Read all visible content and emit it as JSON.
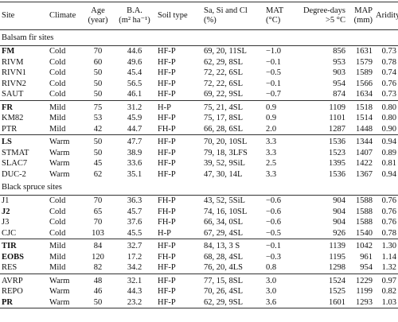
{
  "table": {
    "columns": [
      [
        "Site"
      ],
      [
        "Climate"
      ],
      [
        "Age",
        "(year)"
      ],
      [
        "B.A.",
        "(m² ha⁻¹)"
      ],
      [
        "Soil type"
      ],
      [
        "Sa, Si and Cl",
        "(%)"
      ],
      [
        "MAT",
        "(°C)"
      ],
      [
        "Degree-days",
        ">5 °C"
      ],
      [
        "MAP",
        "(mm)"
      ],
      [
        "Aridity"
      ]
    ],
    "sections": [
      {
        "title": "Balsam fir sites",
        "groups": [
          {
            "rows": [
              {
                "bold": true,
                "cells": [
                  "FM",
                  "Cold",
                  "70",
                  "44.6",
                  "HF-P",
                  "69, 20, 11SL",
                  "−1.0",
                  "856",
                  "1631",
                  "0.73"
                ]
              },
              {
                "cells": [
                  "RIVM",
                  "Cold",
                  "60",
                  "49.6",
                  "HF-P",
                  "62, 29, 8SL",
                  "−0.1",
                  "953",
                  "1579",
                  "0.78"
                ]
              },
              {
                "cells": [
                  "RIVN1",
                  "Cold",
                  "50",
                  "45.4",
                  "HF-P",
                  "72, 22, 6SL",
                  "−0.5",
                  "903",
                  "1589",
                  "0.74"
                ]
              },
              {
                "cells": [
                  "RIVN2",
                  "Cold",
                  "50",
                  "56.5",
                  "HF-P",
                  "72, 22, 6SL",
                  "−0.1",
                  "954",
                  "1566",
                  "0.76"
                ]
              },
              {
                "cells": [
                  "SAUT",
                  "Cold",
                  "50",
                  "46.1",
                  "HF-P",
                  "69, 22, 9SL",
                  "−0.7",
                  "874",
                  "1634",
                  "0.73"
                ]
              }
            ]
          },
          {
            "rows": [
              {
                "bold": true,
                "cells": [
                  "FR",
                  "Mild",
                  "75",
                  "31.2",
                  "H-P",
                  "75, 21, 4SL",
                  "0.9",
                  "1109",
                  "1518",
                  "0.80"
                ]
              },
              {
                "cells": [
                  "KM82",
                  "Mild",
                  "53",
                  "45.9",
                  "HF-P",
                  "75, 17, 8SL",
                  "0.9",
                  "1101",
                  "1514",
                  "0.80"
                ]
              },
              {
                "cells": [
                  "PTR",
                  "Mild",
                  "42",
                  "44.7",
                  "FH-P",
                  "66, 28, 6SL",
                  "2.0",
                  "1287",
                  "1448",
                  "0.90"
                ]
              }
            ]
          },
          {
            "rows": [
              {
                "bold": true,
                "cells": [
                  "LS",
                  "Warm",
                  "50",
                  "47.7",
                  "HF-P",
                  "70, 20, 10SL",
                  "3.3",
                  "1536",
                  "1344",
                  "0.94"
                ]
              },
              {
                "cells": [
                  "STMAT",
                  "Warm",
                  "50",
                  "38.9",
                  "HF-P",
                  "79, 18, 3LFS",
                  "3.3",
                  "1523",
                  "1407",
                  "0.89"
                ]
              },
              {
                "cells": [
                  "SLAC7",
                  "Warm",
                  "45",
                  "33.6",
                  "HF-P",
                  "39, 52, 9SiL",
                  "2.5",
                  "1395",
                  "1422",
                  "0.81"
                ]
              },
              {
                "cells": [
                  "DUC-2",
                  "Warm",
                  "62",
                  "35.1",
                  "HF-P",
                  "47, 30, 14L",
                  "3.3",
                  "1536",
                  "1367",
                  "0.94"
                ]
              }
            ]
          }
        ]
      },
      {
        "title": "Black spruce sites",
        "groups": [
          {
            "rows": [
              {
                "cells": [
                  "J1",
                  "Cold",
                  "70",
                  "36.3",
                  "FH-P",
                  "43, 52, 5SiL",
                  "−0.6",
                  "904",
                  "1588",
                  "0.76"
                ]
              },
              {
                "bold": true,
                "cells": [
                  "J2",
                  "Cold",
                  "65",
                  "45.7",
                  "FH-P",
                  "74, 16, 10SL",
                  "−0.6",
                  "904",
                  "1588",
                  "0.76"
                ]
              },
              {
                "cells": [
                  "J3",
                  "Cold",
                  "70",
                  "37.6",
                  "FH-P",
                  "66, 34, 0SL",
                  "−0.6",
                  "904",
                  "1588",
                  "0.76"
                ]
              },
              {
                "cells": [
                  "CJC",
                  "Cold",
                  "103",
                  "45.5",
                  "H-P",
                  "67, 29, 4SL",
                  "−0.5",
                  "926",
                  "1540",
                  "0.78"
                ]
              }
            ]
          },
          {
            "rows": [
              {
                "bold": true,
                "cells": [
                  "TIR",
                  "Mild",
                  "84",
                  "32.7",
                  "HF-P",
                  "84, 13, 3 S",
                  "−0.1",
                  "1139",
                  "1042",
                  "1.30"
                ]
              },
              {
                "bold": true,
                "cells": [
                  "EOBS",
                  "Mild",
                  "120",
                  "17.2",
                  "FH-P",
                  "68, 28, 4SL",
                  "−0.3",
                  "1195",
                  "961",
                  "1.14"
                ]
              },
              {
                "cells": [
                  "RES",
                  "Mild",
                  "82",
                  "34.2",
                  "HF-P",
                  "76, 20, 4LS",
                  "0.8",
                  "1298",
                  "954",
                  "1.32"
                ]
              }
            ]
          },
          {
            "rows": [
              {
                "cells": [
                  "AVRP",
                  "Warm",
                  "48",
                  "32.1",
                  "HF-P",
                  "77, 15, 8SL",
                  "3.0",
                  "1524",
                  "1229",
                  "0.97"
                ]
              },
              {
                "cells": [
                  "REPO",
                  "Warm",
                  "46",
                  "44.3",
                  "HF-P",
                  "70, 26, 4SL",
                  "3.0",
                  "1525",
                  "1199",
                  "0.82"
                ]
              },
              {
                "bold": true,
                "cells": [
                  "PR",
                  "Warm",
                  "50",
                  "23.2",
                  "HF-P",
                  "62, 29, 9SL",
                  "3.6",
                  "1601",
                  "1293",
                  "1.03"
                ]
              }
            ]
          }
        ]
      }
    ]
  }
}
